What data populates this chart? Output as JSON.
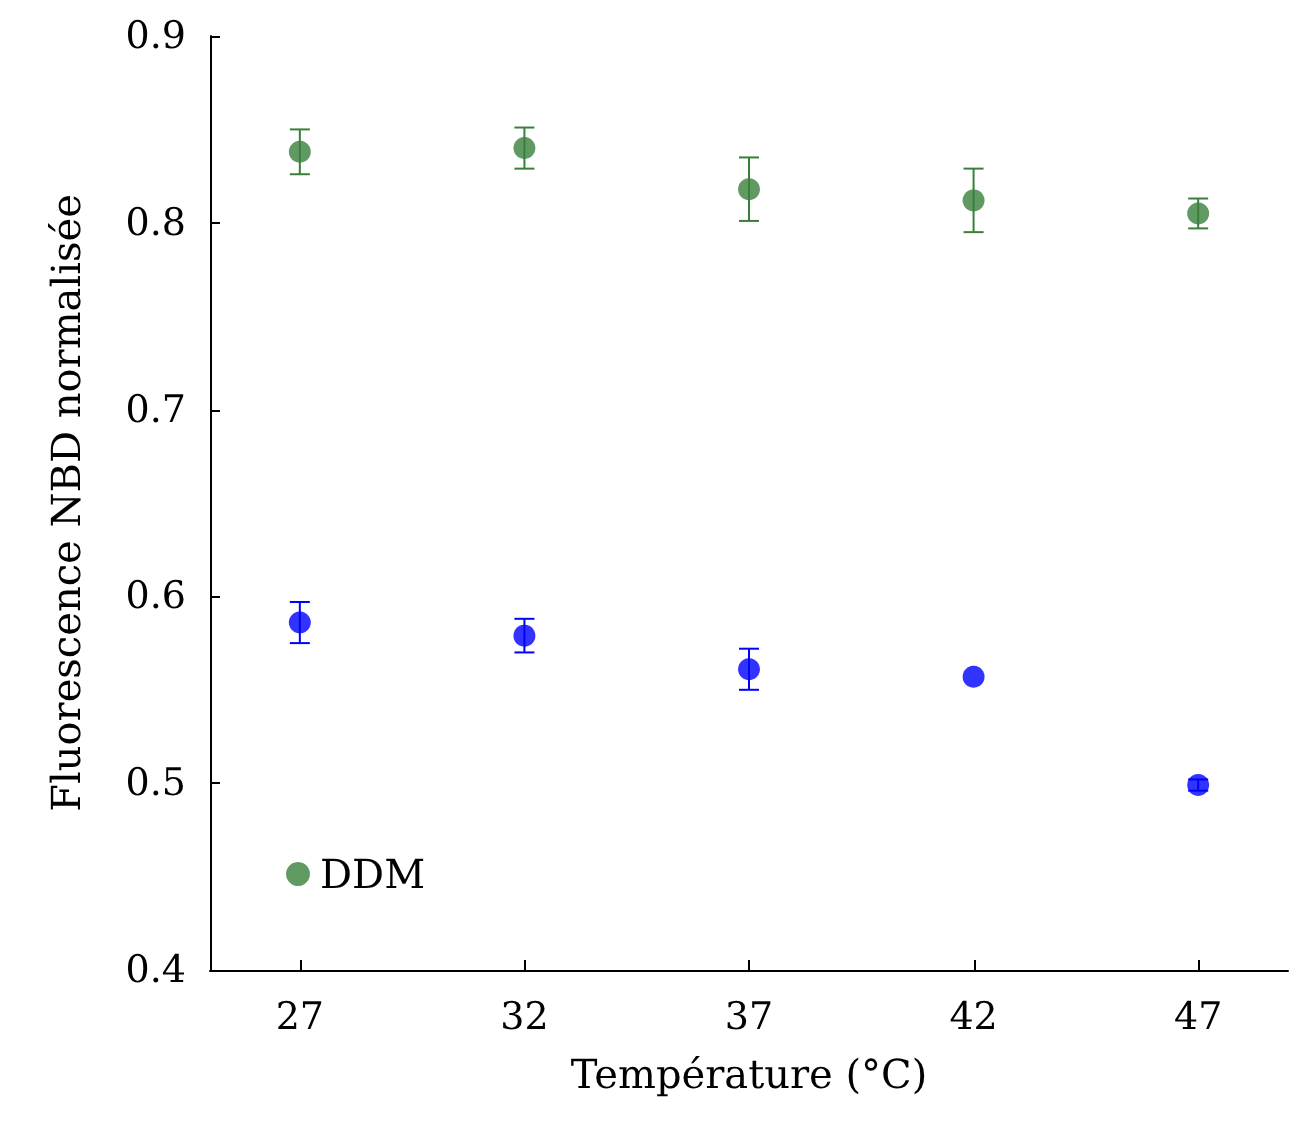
{
  "chart_data": {
    "type": "scatter",
    "xlabel": "Température (°C)",
    "ylabel": "Fluorescence NBD normalisée",
    "x": [
      27,
      32,
      37,
      42,
      47
    ],
    "series": [
      {
        "color": "#0000ff",
        "values": [
          0.586,
          0.579,
          0.561,
          0.557,
          0.499
        ],
        "errors": [
          0.011,
          0.009,
          0.011,
          null,
          0.003
        ]
      },
      {
        "name": "DDM",
        "color": "#38803a",
        "values": [
          0.838,
          0.84,
          0.818,
          0.812,
          0.805
        ],
        "errors": [
          0.012,
          0.011,
          0.017,
          0.017,
          0.008
        ]
      }
    ],
    "xlim": [
      25,
      49
    ],
    "ylim": [
      0.4,
      0.9
    ],
    "xticks": [
      27,
      32,
      37,
      42,
      47
    ],
    "yticks": [
      0.4,
      0.5,
      0.6,
      0.7,
      0.8,
      0.9
    ],
    "grid": false,
    "legend": "bottom left",
    "marker": "circle"
  }
}
